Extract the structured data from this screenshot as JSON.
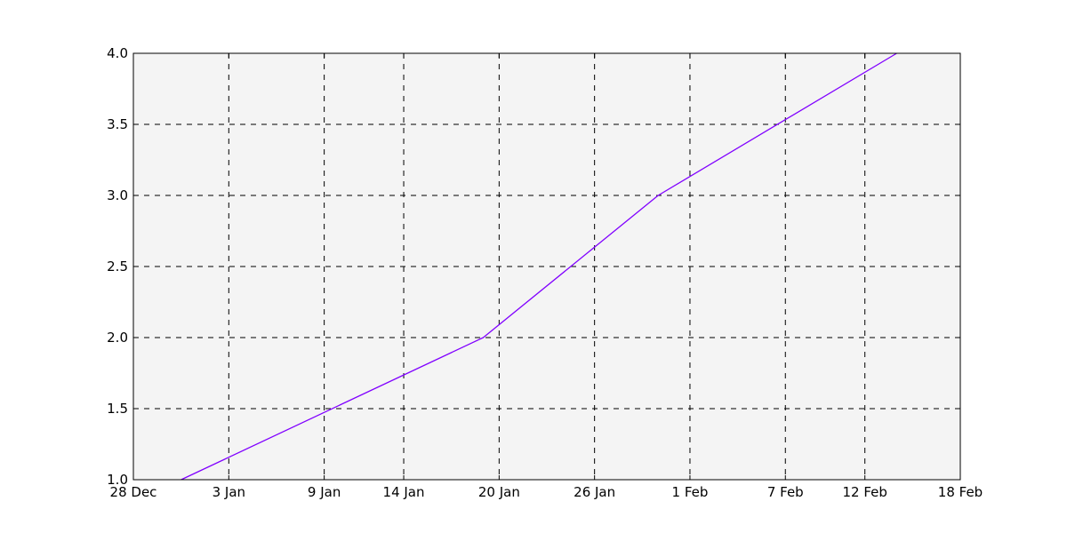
{
  "chart_data": {
    "type": "line",
    "title": "",
    "xlabel": "",
    "ylabel": "",
    "xlim": [
      "2000-12-28",
      "2001-02-18"
    ],
    "ylim": [
      1.0,
      4.0
    ],
    "grid": true,
    "x_ticks": [
      {
        "date": "2000-12-28",
        "label": "28 Dec"
      },
      {
        "date": "2001-01-03",
        "label": "3 Jan"
      },
      {
        "date": "2001-01-09",
        "label": "9 Jan"
      },
      {
        "date": "2001-01-14",
        "label": "14 Jan"
      },
      {
        "date": "2001-01-20",
        "label": "20 Jan"
      },
      {
        "date": "2001-01-26",
        "label": "26 Jan"
      },
      {
        "date": "2001-02-01",
        "label": "1 Feb"
      },
      {
        "date": "2001-02-07",
        "label": "7 Feb"
      },
      {
        "date": "2001-02-12",
        "label": "12 Feb"
      },
      {
        "date": "2001-02-18",
        "label": "18 Feb"
      }
    ],
    "y_ticks": [
      {
        "value": 1.0,
        "label": "1.0"
      },
      {
        "value": 1.5,
        "label": "1.5"
      },
      {
        "value": 2.0,
        "label": "2.0"
      },
      {
        "value": 2.5,
        "label": "2.5"
      },
      {
        "value": 3.0,
        "label": "3.0"
      },
      {
        "value": 3.5,
        "label": "3.5"
      },
      {
        "value": 4.0,
        "label": "4.0"
      }
    ],
    "series": [
      {
        "color": "#8000ff",
        "points": [
          {
            "x": "2000-12-31",
            "y": 1.0
          },
          {
            "x": "2001-01-19",
            "y": 2.0
          },
          {
            "x": "2001-01-30",
            "y": 3.0
          },
          {
            "x": "2001-02-14",
            "y": 4.0
          }
        ]
      }
    ]
  }
}
